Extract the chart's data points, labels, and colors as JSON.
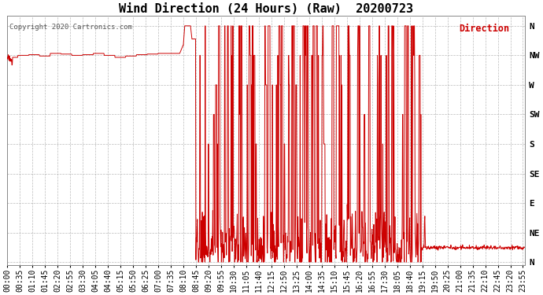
{
  "title": "Wind Direction (24 Hours) (Raw)  20200723",
  "copyright": "Copyright 2020 Cartronics.com",
  "legend_label": "Direction",
  "legend_color": "#cc0000",
  "line_color": "#cc0000",
  "line_color2": "#333333",
  "background_color": "#ffffff",
  "plot_bg_color": "#ffffff",
  "ytick_labels": [
    "N",
    "NW",
    "W",
    "SW",
    "S",
    "SE",
    "E",
    "NE",
    "N"
  ],
  "ytick_values": [
    360,
    315,
    270,
    225,
    180,
    135,
    90,
    45,
    0
  ],
  "ylim": [
    -5,
    375
  ],
  "title_fontsize": 11,
  "axis_fontsize": 7,
  "copyright_fontsize": 6.5,
  "legend_fontsize": 8.5,
  "grid_color": "#aaaaaa",
  "grid_linestyle": "--",
  "grid_alpha": 0.8,
  "tick_interval_min": 35,
  "figsize": [
    6.9,
    3.75
  ],
  "dpi": 100
}
